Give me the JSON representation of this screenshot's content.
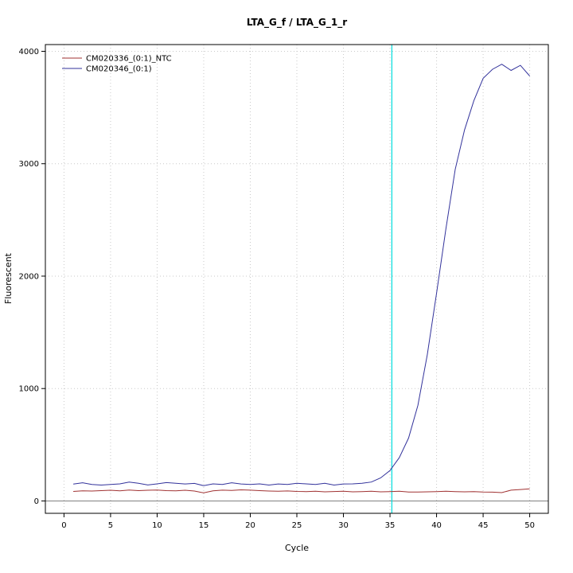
{
  "chart_data": {
    "type": "line",
    "title": "LTA_G_f / LTA_G_1_r",
    "xlabel": "Cycle",
    "ylabel": "Fluorescent",
    "xlim": [
      -2,
      52
    ],
    "ylim": [
      -110,
      4060
    ],
    "xticks": [
      0,
      5,
      10,
      15,
      20,
      25,
      30,
      35,
      40,
      45,
      50
    ],
    "yticks": [
      0,
      1000,
      2000,
      3000,
      4000
    ],
    "grid": "dotted",
    "grid_color": "#c9c9c9",
    "legend_position": "top-left",
    "threshold_cycle": 35.2,
    "threshold_color": "#00dcdc",
    "zero_line_color": "#808080",
    "box_color": "#000000",
    "x": [
      1,
      2,
      3,
      4,
      5,
      6,
      7,
      8,
      9,
      10,
      11,
      12,
      13,
      14,
      15,
      16,
      17,
      18,
      19,
      20,
      21,
      22,
      23,
      24,
      25,
      26,
      27,
      28,
      29,
      30,
      31,
      32,
      33,
      34,
      35,
      36,
      37,
      38,
      39,
      40,
      41,
      42,
      43,
      44,
      45,
      46,
      47,
      48,
      49,
      50
    ],
    "series": [
      {
        "name": "CM020336_(0:1)_NTC",
        "color": "#a03232",
        "values": [
          85,
          90,
          88,
          92,
          95,
          90,
          97,
          92,
          95,
          97,
          92,
          90,
          95,
          88,
          72,
          90,
          96,
          93,
          99,
          96,
          92,
          88,
          86,
          89,
          85,
          83,
          86,
          81,
          84,
          86,
          81,
          83,
          86,
          81,
          83,
          86,
          80,
          79,
          81,
          83,
          86,
          83,
          81,
          83,
          80,
          78,
          74,
          96,
          102,
          108
        ]
      },
      {
        "name": "CM020346_(0:1)",
        "color": "#32329b",
        "values": [
          150,
          162,
          146,
          141,
          147,
          152,
          168,
          157,
          142,
          152,
          163,
          157,
          151,
          156,
          136,
          152,
          146,
          162,
          151,
          146,
          152,
          141,
          151,
          146,
          157,
          152,
          146,
          157,
          141,
          151,
          152,
          157,
          168,
          205,
          270,
          385,
          560,
          850,
          1300,
          1850,
          2420,
          2950,
          3300,
          3560,
          3760,
          3840,
          3885,
          3830,
          3875,
          3780
        ]
      }
    ]
  }
}
